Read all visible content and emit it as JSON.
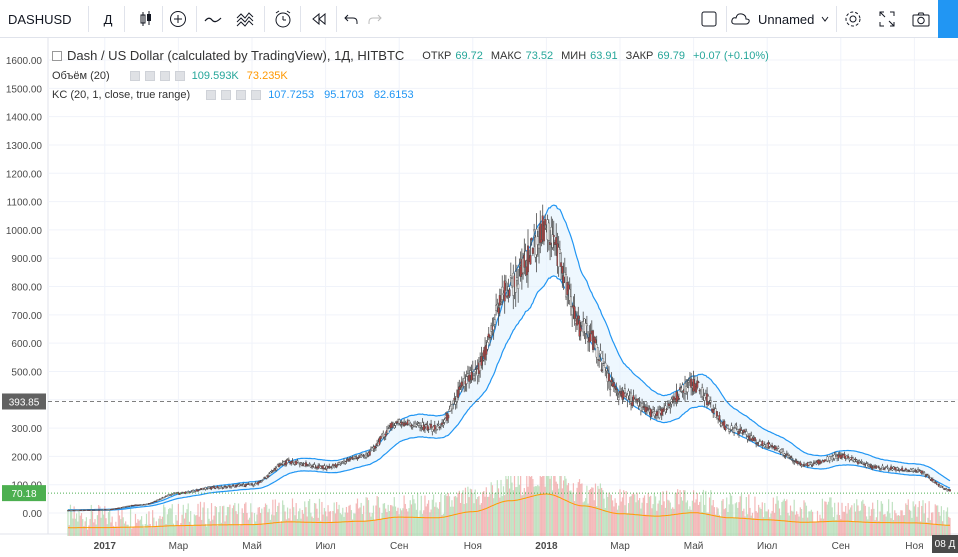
{
  "toolbar": {
    "symbol": "DASHUSD",
    "interval": "Д",
    "layout_name": "Unnamed"
  },
  "legend": {
    "main": {
      "title": "Dash / US Dollar (calculated by TradingView), 1Д, HITBTC",
      "open_label": "ОТКР",
      "open": "69.72",
      "high_label": "МАКС",
      "high": "73.52",
      "low_label": "МИН",
      "low": "63.91",
      "close_label": "ЗАКР",
      "close": "69.79",
      "change": "+0.07 (+0.10%)"
    },
    "volume": {
      "label": "Объём (20)",
      "value1": "109.593K",
      "value2": "73.235K"
    },
    "kc": {
      "label": "KC (20, 1, close, true range)",
      "upper": "107.7253",
      "middle": "95.1703",
      "lower": "82.6153"
    }
  },
  "colors": {
    "up": "#26a69a",
    "down": "#ef5350",
    "candle": "#4a4a4a",
    "kc": "#2196f3",
    "kc_fill": "#e3f2fd",
    "vol_up": "#a5d6a7",
    "vol_down": "#ef9a9a",
    "vol_ma": "#ff9800",
    "price_label": "#4caf50"
  },
  "chart_data": {
    "type": "line",
    "title": "Dash / US Dollar (calculated by TradingView), 1Д, HITBTC",
    "y_ticks": [
      "1600.00",
      "1500.00",
      "1400.00",
      "1300.00",
      "1200.00",
      "1100.00",
      "1000.00",
      "900.00",
      "800.00",
      "700.00",
      "600.00",
      "500.00",
      "400.00",
      "300.00",
      "200.00",
      "100.00",
      "0.00"
    ],
    "x_ticks": [
      "2017",
      "Мар",
      "Май",
      "Июл",
      "Сен",
      "Ноя",
      "2018",
      "Мар",
      "Май",
      "Июл",
      "Сен",
      "Ноя"
    ],
    "ylim": [
      -30,
      1650
    ],
    "horizontal_line": {
      "value": 393.85,
      "label": "393.85"
    },
    "last_price_label": "70.18",
    "date_badge": "08 Д",
    "series": [
      {
        "name": "Dash / US Dollar",
        "x": [
          "2016-12",
          "2017-01",
          "2017-02",
          "2017-03",
          "2017-04",
          "2017-05",
          "2017-06",
          "2017-07",
          "2017-08",
          "2017-09",
          "2017-10",
          "2017-11",
          "2017-12",
          "2018-01",
          "2018-02",
          "2018-03",
          "2018-04",
          "2018-05",
          "2018-06",
          "2018-07",
          "2018-08",
          "2018-09",
          "2018-10",
          "2018-11",
          "2018-12"
        ],
        "values": [
          10,
          12,
          30,
          70,
          90,
          100,
          180,
          160,
          200,
          320,
          300,
          480,
          800,
          1000,
          650,
          420,
          350,
          450,
          300,
          240,
          170,
          200,
          160,
          150,
          80
        ]
      }
    ]
  }
}
